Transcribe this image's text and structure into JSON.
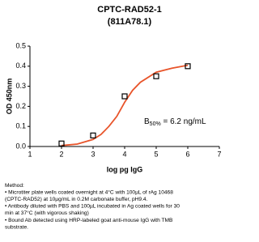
{
  "chart_data": {
    "type": "scatter",
    "title": "CPTC-RAD52-1",
    "subtitle": "(811A78.1)",
    "x_label": "log pg IgG",
    "y_label": "OD 450nm",
    "x": [
      2,
      3,
      4,
      5,
      6
    ],
    "values": [
      0.015,
      0.055,
      0.25,
      0.35,
      0.4
    ],
    "color": "#000000",
    "fit": {
      "color": "#e8542a",
      "x": [
        2,
        2.5,
        3,
        3.25,
        3.5,
        3.75,
        4,
        4.25,
        4.5,
        5,
        5.5,
        6
      ],
      "values": [
        0.005,
        0.012,
        0.035,
        0.06,
        0.1,
        0.15,
        0.22,
        0.28,
        0.32,
        0.37,
        0.39,
        0.405
      ]
    },
    "annotation": {
      "base": "B",
      "sub": "50%",
      "rest": " = 6.2 ng/mL"
    },
    "xlim": [
      1,
      7
    ],
    "xticks": [
      1,
      2,
      3,
      4,
      5,
      6,
      7
    ],
    "ylim": [
      0,
      0.5
    ],
    "yticks": [
      {
        "value": 0,
        "label": "0.0"
      },
      0.1,
      0.2,
      0.3,
      0.4,
      0.5
    ],
    "grid": false
  },
  "notes": [
    "Method:",
    "• Microtiter plate wells coated overnight at 4°C  with 100µL of rAg 10468",
    "(CPTC-RAD52) at 10µg/mL in 0.2M carbonate buffer, pH9.4.",
    "• Antibody diluted with PBS and 100µL incubated in Ag coated wells for 30",
    "min at 37°C (with vigorous shaking)",
    "• Bound Ab detected using HRP-labeled goat anti-mouse IgG with TMB",
    "substrate."
  ]
}
